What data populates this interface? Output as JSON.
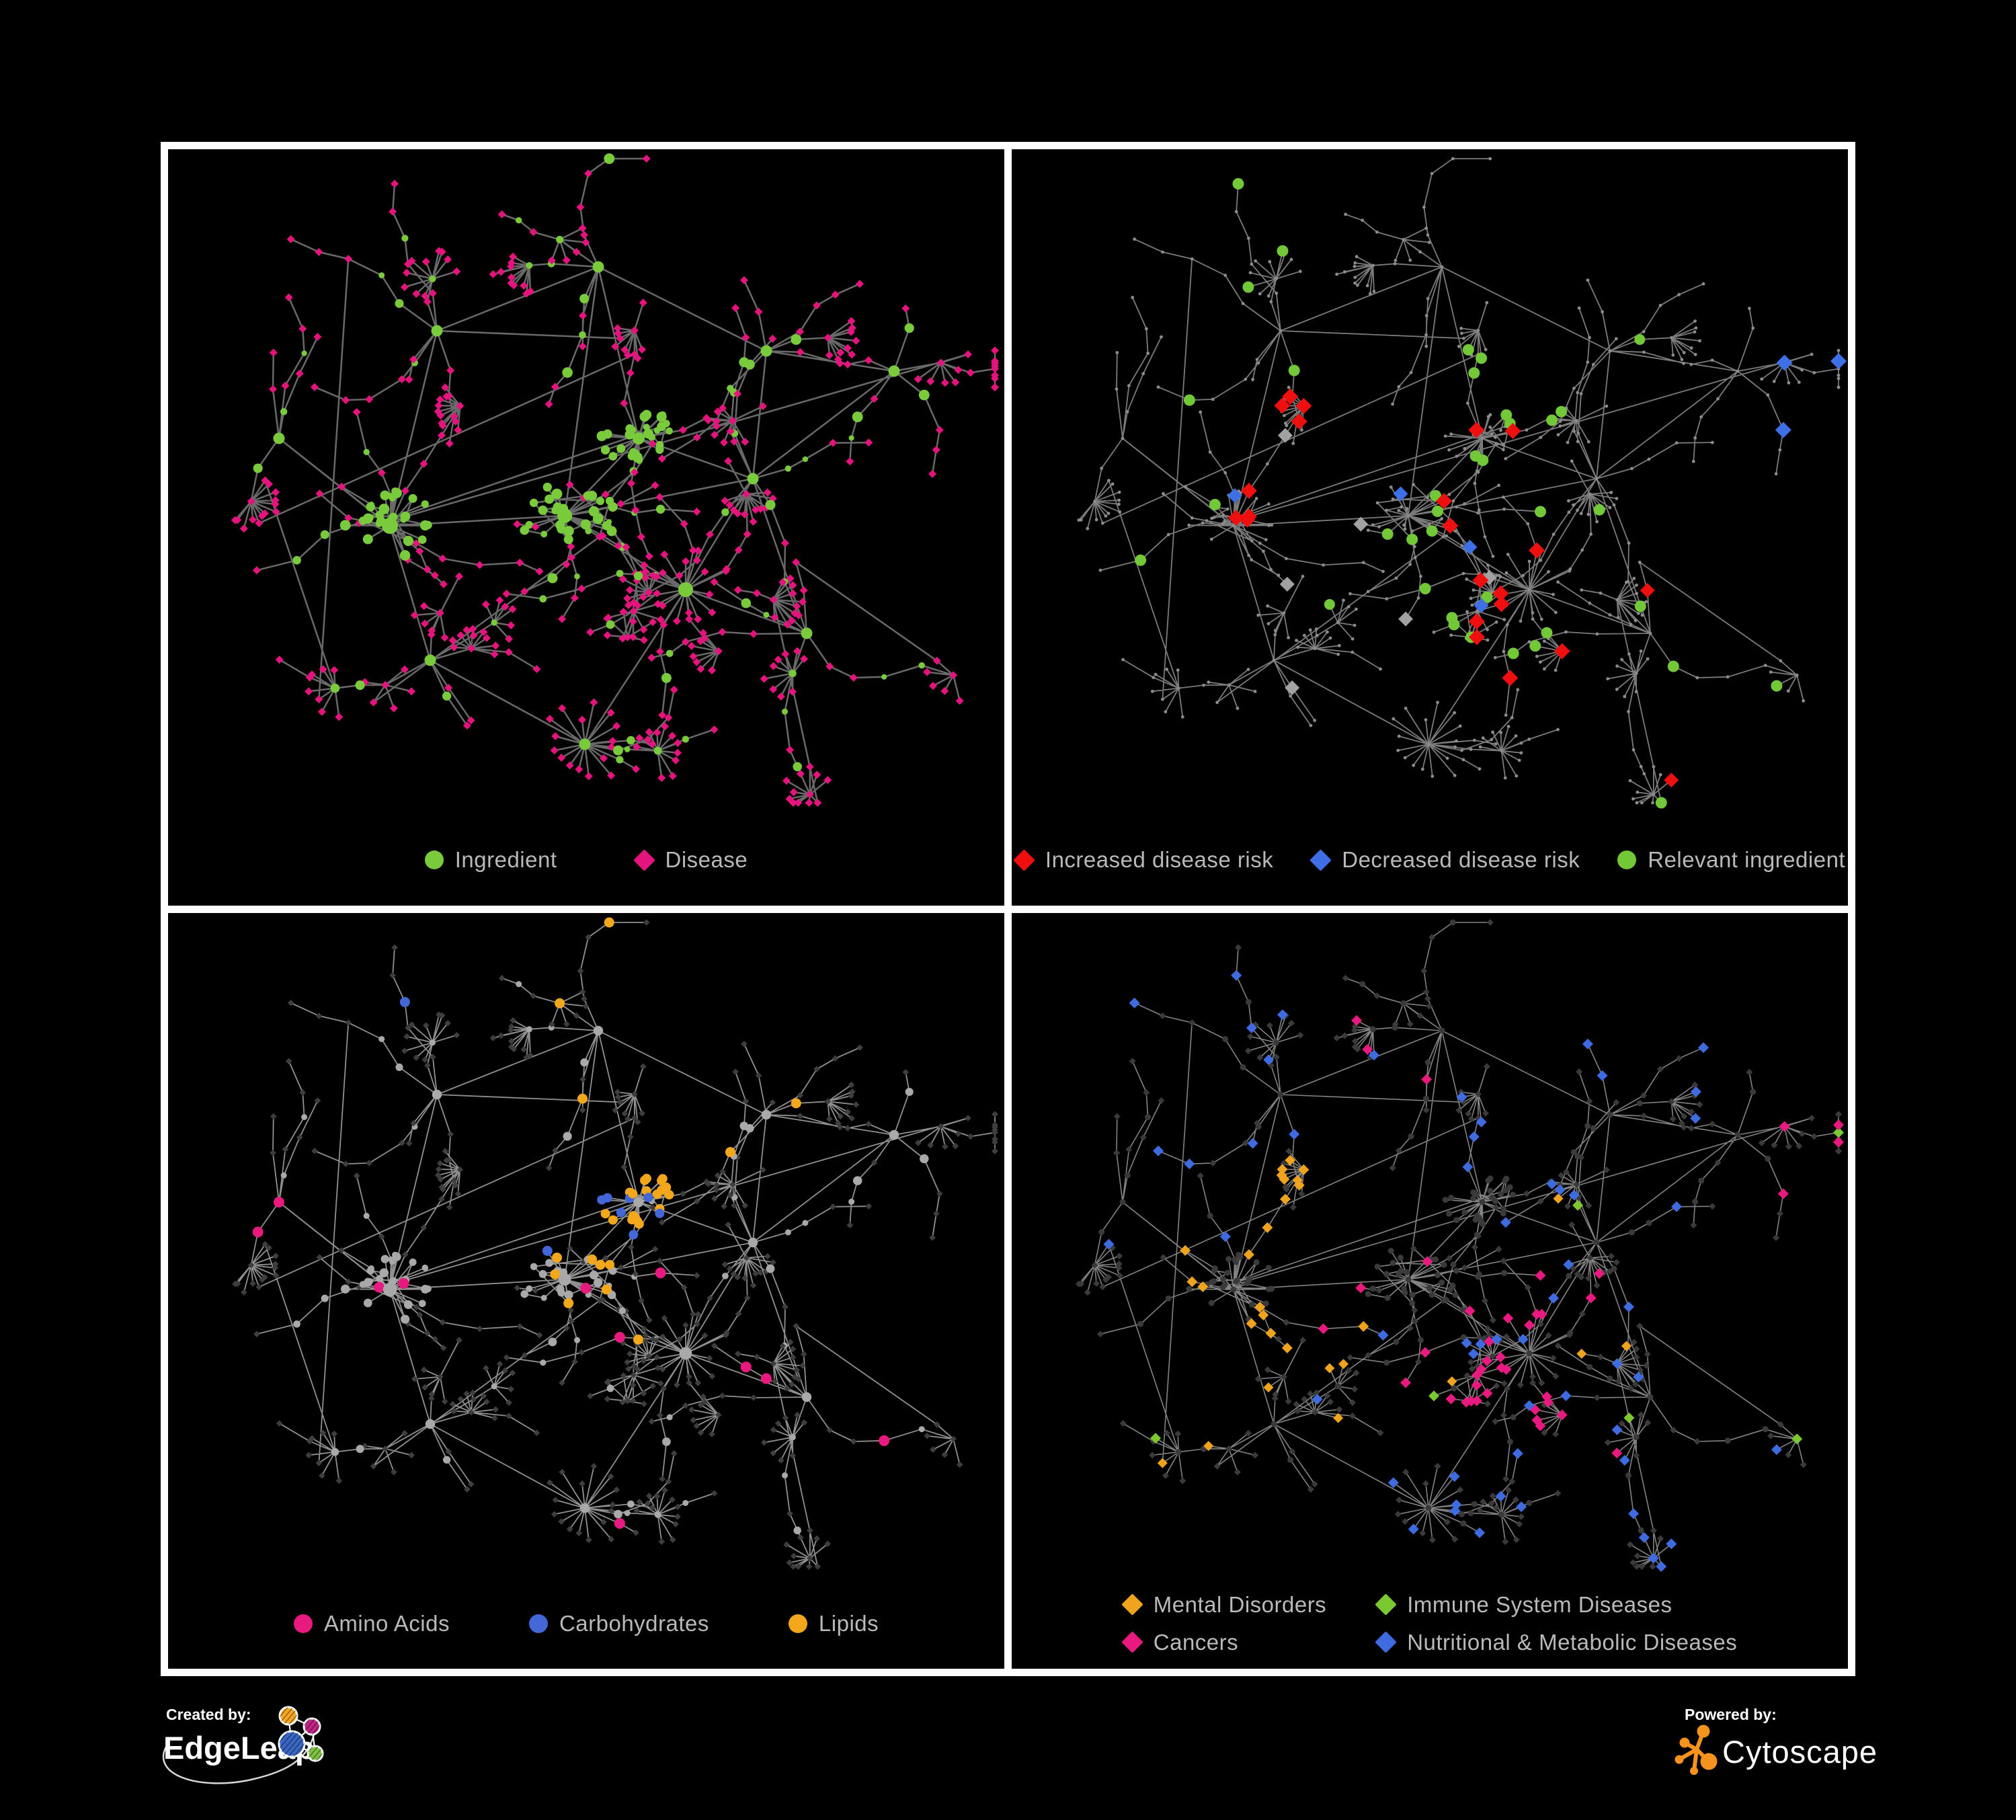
{
  "figure": {
    "background": "#000000",
    "frame_color": "#ffffff"
  },
  "panels": [
    {
      "id": "ingredient-disease-network",
      "legend": [
        {
          "label": "Ingredient",
          "shape": "circle",
          "color": "#7acb3b"
        },
        {
          "label": "Disease",
          "shape": "diamond",
          "color": "#e5137e"
        }
      ]
    },
    {
      "id": "disease-risk-network",
      "legend": [
        {
          "label": "Increased disease risk",
          "shape": "diamond",
          "color": "#f00f0f"
        },
        {
          "label": "Decreased disease risk",
          "shape": "diamond",
          "color": "#3e6fe6"
        },
        {
          "label": "Relevant ingredient",
          "shape": "circle",
          "color": "#72c837"
        }
      ]
    },
    {
      "id": "nutrient-class-network",
      "legend": [
        {
          "label": "Amino Acids",
          "shape": "circle",
          "color": "#e8197f"
        },
        {
          "label": "Carbohydrates",
          "shape": "circle",
          "color": "#4467d8"
        },
        {
          "label": "Lipids",
          "shape": "circle",
          "color": "#f3a81b"
        }
      ]
    },
    {
      "id": "disease-class-network",
      "legend": [
        {
          "label": "Mental Disorders",
          "shape": "diamond",
          "color": "#f0a41e"
        },
        {
          "label": "Immune System Diseases",
          "shape": "diamond",
          "color": "#7cc831"
        },
        {
          "label": "Cancers",
          "shape": "diamond",
          "color": "#e8197f"
        },
        {
          "label": "Nutritional & Metabolic Diseases",
          "shape": "diamond",
          "color": "#3e6be0"
        }
      ]
    }
  ],
  "network_semantics": {
    "circle_node_means": "Ingredient",
    "diamond_node_means": "Disease"
  },
  "footer": {
    "created_by_label": "Created by:",
    "created_by_name": "EdgeLeap",
    "powered_by_label": "Powered by:",
    "powered_by_name": "Cytoscape",
    "cytoscape_orange": "#f6921e",
    "edgeleap_node_colors": [
      "#f5a623",
      "#c02485",
      "#3a66c4",
      "#7dc242"
    ]
  }
}
